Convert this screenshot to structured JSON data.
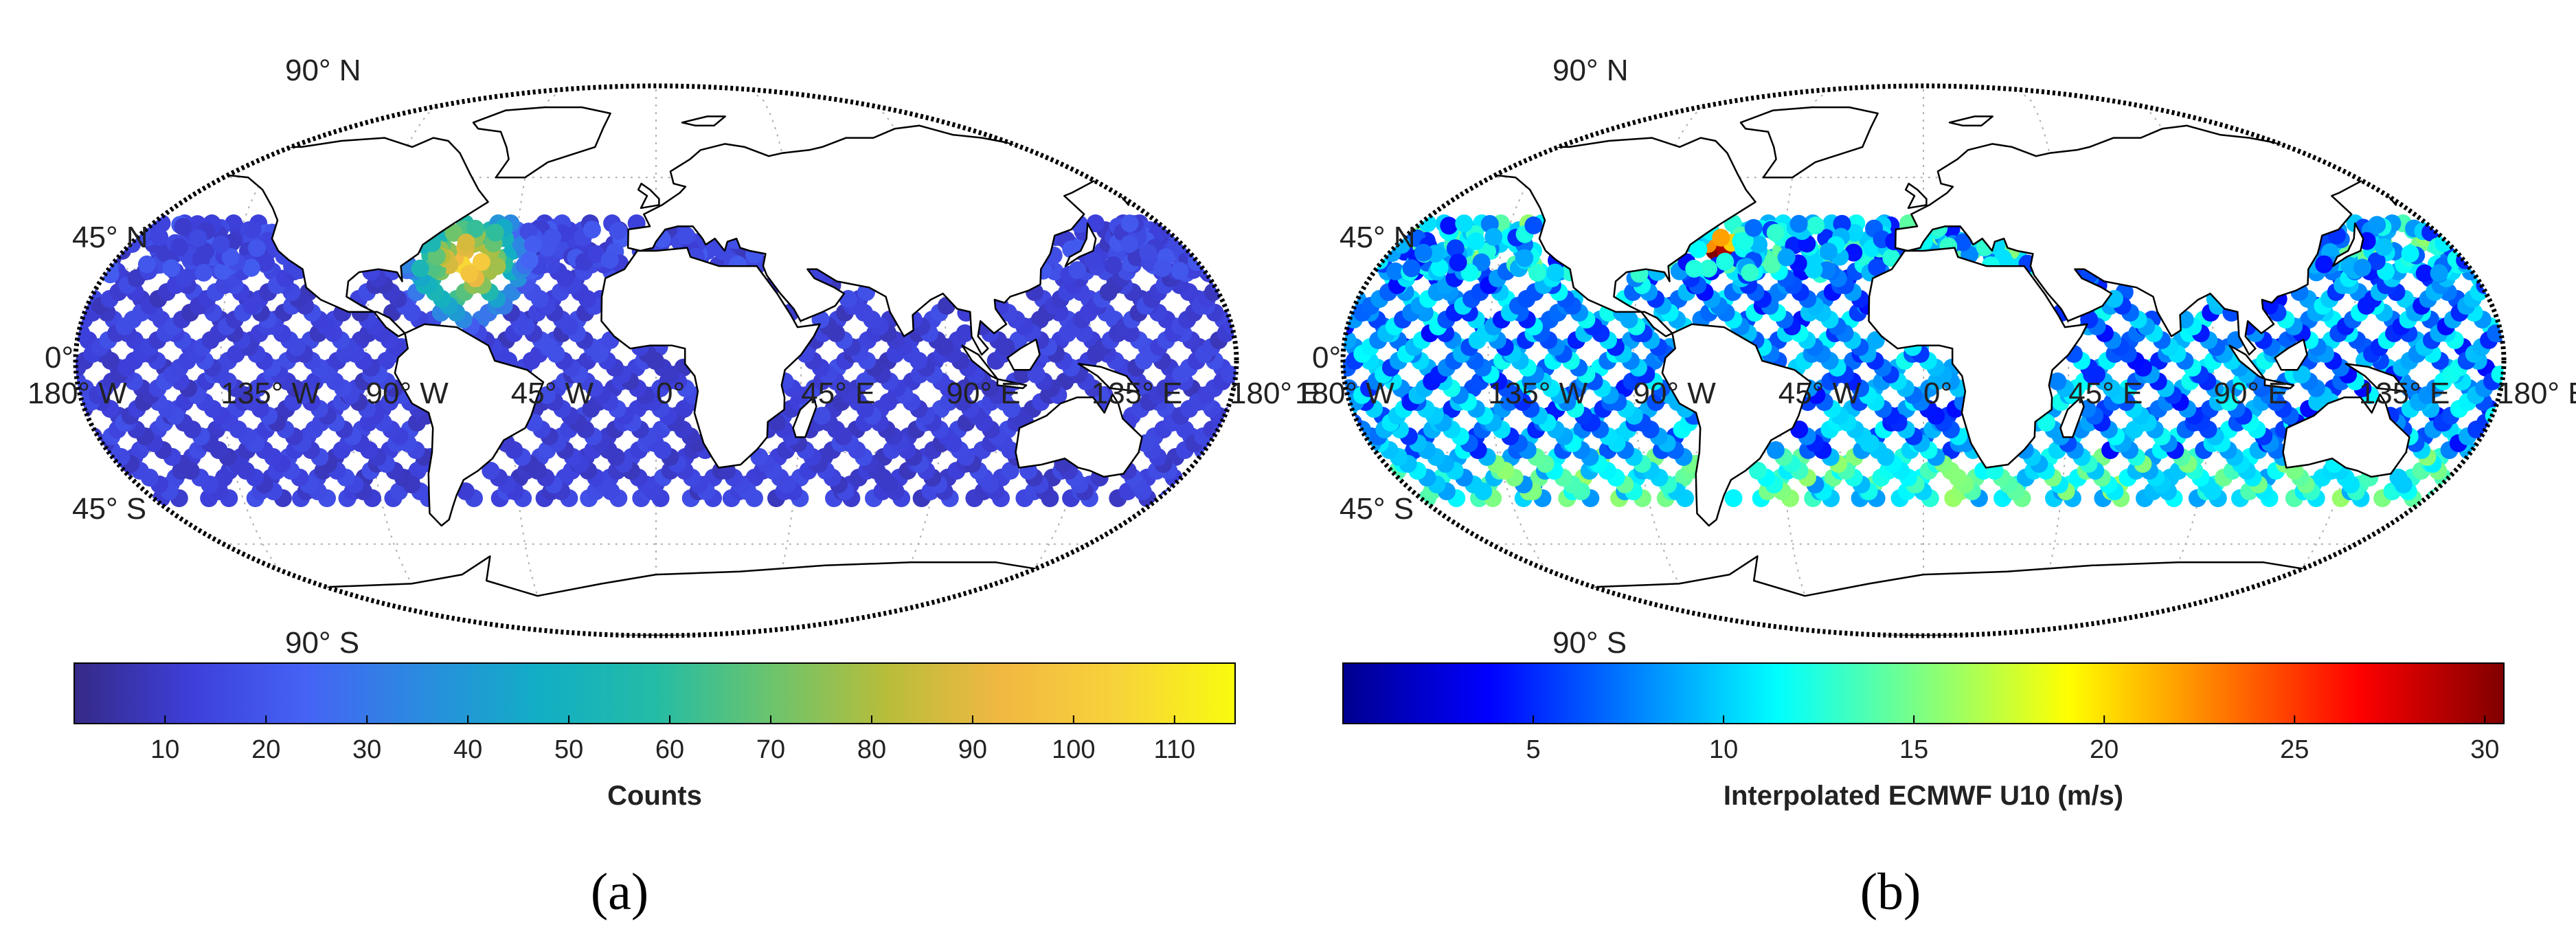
{
  "panels": [
    {
      "id": "a",
      "caption": "(a)",
      "lat_labels": {
        "n90": "90° N",
        "n45": "45° N",
        "eq": "0°",
        "s45": "45° S",
        "s90": "90° S"
      },
      "lon_labels": [
        "180° W",
        "135° W",
        "90° W",
        "45° W",
        "0°",
        "45° E",
        "90° E",
        "135° E",
        "180° E"
      ],
      "colorbar": {
        "colormap": "parula",
        "range": [
          1,
          116
        ],
        "ticks": [
          "10",
          "20",
          "30",
          "40",
          "50",
          "60",
          "70",
          "80",
          "90",
          "100",
          "110"
        ],
        "tick_values": [
          10,
          20,
          30,
          40,
          50,
          60,
          70,
          80,
          90,
          100,
          110
        ],
        "label": "Counts",
        "colors": [
          "#352a87",
          "#3d3fd9",
          "#4563f5",
          "#2a8cdf",
          "#12aec5",
          "#23bca6",
          "#6bc46d",
          "#b8bd3a",
          "#f2b842",
          "#f7d33a",
          "#f9fb0e"
        ]
      },
      "map_extent": {
        "lat_min": -45,
        "lat_max": 45
      },
      "hotspot": {
        "name": "North Atlantic off US east coast",
        "lon": -60,
        "lat": 32,
        "peak_value": 100
      }
    },
    {
      "id": "b",
      "caption": "(b)",
      "lat_labels": {
        "n90": "90° N",
        "n45": "45° N",
        "eq": "0°",
        "s45": "45° S",
        "s90": "90° S"
      },
      "lon_labels": [
        "180° W",
        "135° W",
        "90° W",
        "45° W",
        "0°",
        "45° E",
        "90° E",
        "135° E",
        "180° E"
      ],
      "colorbar": {
        "colormap": "jet",
        "range": [
          0,
          30.5
        ],
        "ticks": [
          "5",
          "10",
          "15",
          "20",
          "25",
          "30"
        ],
        "tick_values": [
          5,
          10,
          15,
          20,
          25,
          30
        ],
        "label": "Interpolated ECMWF U10 (m/s)",
        "colors": [
          "#00008f",
          "#0000ff",
          "#0080ff",
          "#00ffff",
          "#80ff80",
          "#ffff00",
          "#ff8000",
          "#ff0000",
          "#800000"
        ]
      },
      "map_extent": {
        "lat_min": -45,
        "lat_max": 45
      },
      "hotspot": {
        "name": "North Atlantic off US east coast",
        "lon": -65,
        "lat": 38,
        "peak_value": 25
      }
    }
  ]
}
